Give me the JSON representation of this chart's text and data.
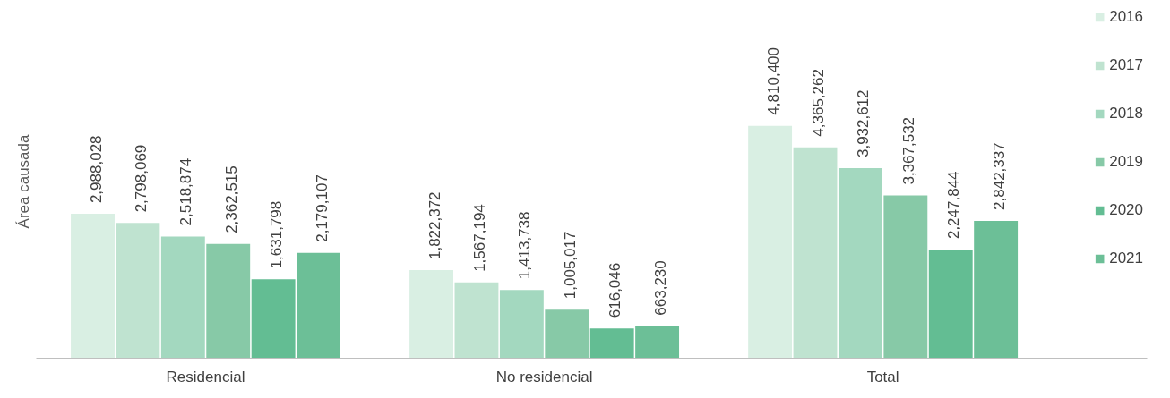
{
  "chart_data": {
    "type": "bar",
    "ylabel": "Área causada",
    "categories": [
      "Residencial",
      "No residencial",
      "Total"
    ],
    "series": [
      {
        "name": "2016",
        "color": "#d9efe3",
        "values": [
          2988028,
          1822372,
          4810400
        ],
        "value_labels": [
          "2,988,028",
          "1,822,372",
          "4,810,400"
        ]
      },
      {
        "name": "2017",
        "color": "#bfe3d0",
        "values": [
          2798069,
          1567194,
          4365262
        ],
        "value_labels": [
          "2,798,069",
          "1,567,194",
          "4,365,262"
        ]
      },
      {
        "name": "2018",
        "color": "#a3d8bf",
        "values": [
          2518874,
          1413738,
          3932612
        ],
        "value_labels": [
          "2,518,874",
          "1,413,738",
          "3,932,612"
        ]
      },
      {
        "name": "2019",
        "color": "#87c9a7",
        "values": [
          2362515,
          1005017,
          3367532
        ],
        "value_labels": [
          "2,362,515",
          "1,005,017",
          "3,367,532"
        ]
      },
      {
        "name": "2020",
        "color": "#63bd93",
        "values": [
          1631798,
          616046,
          2247844
        ],
        "value_labels": [
          "1,631,798",
          "616,046",
          "2,247,844"
        ]
      },
      {
        "name": "2021",
        "color": "#6cbf97",
        "values": [
          2179107,
          663230,
          2842337
        ],
        "value_labels": [
          "2,179,107",
          "663,230",
          "2,842,337"
        ]
      }
    ],
    "legend": "right"
  }
}
